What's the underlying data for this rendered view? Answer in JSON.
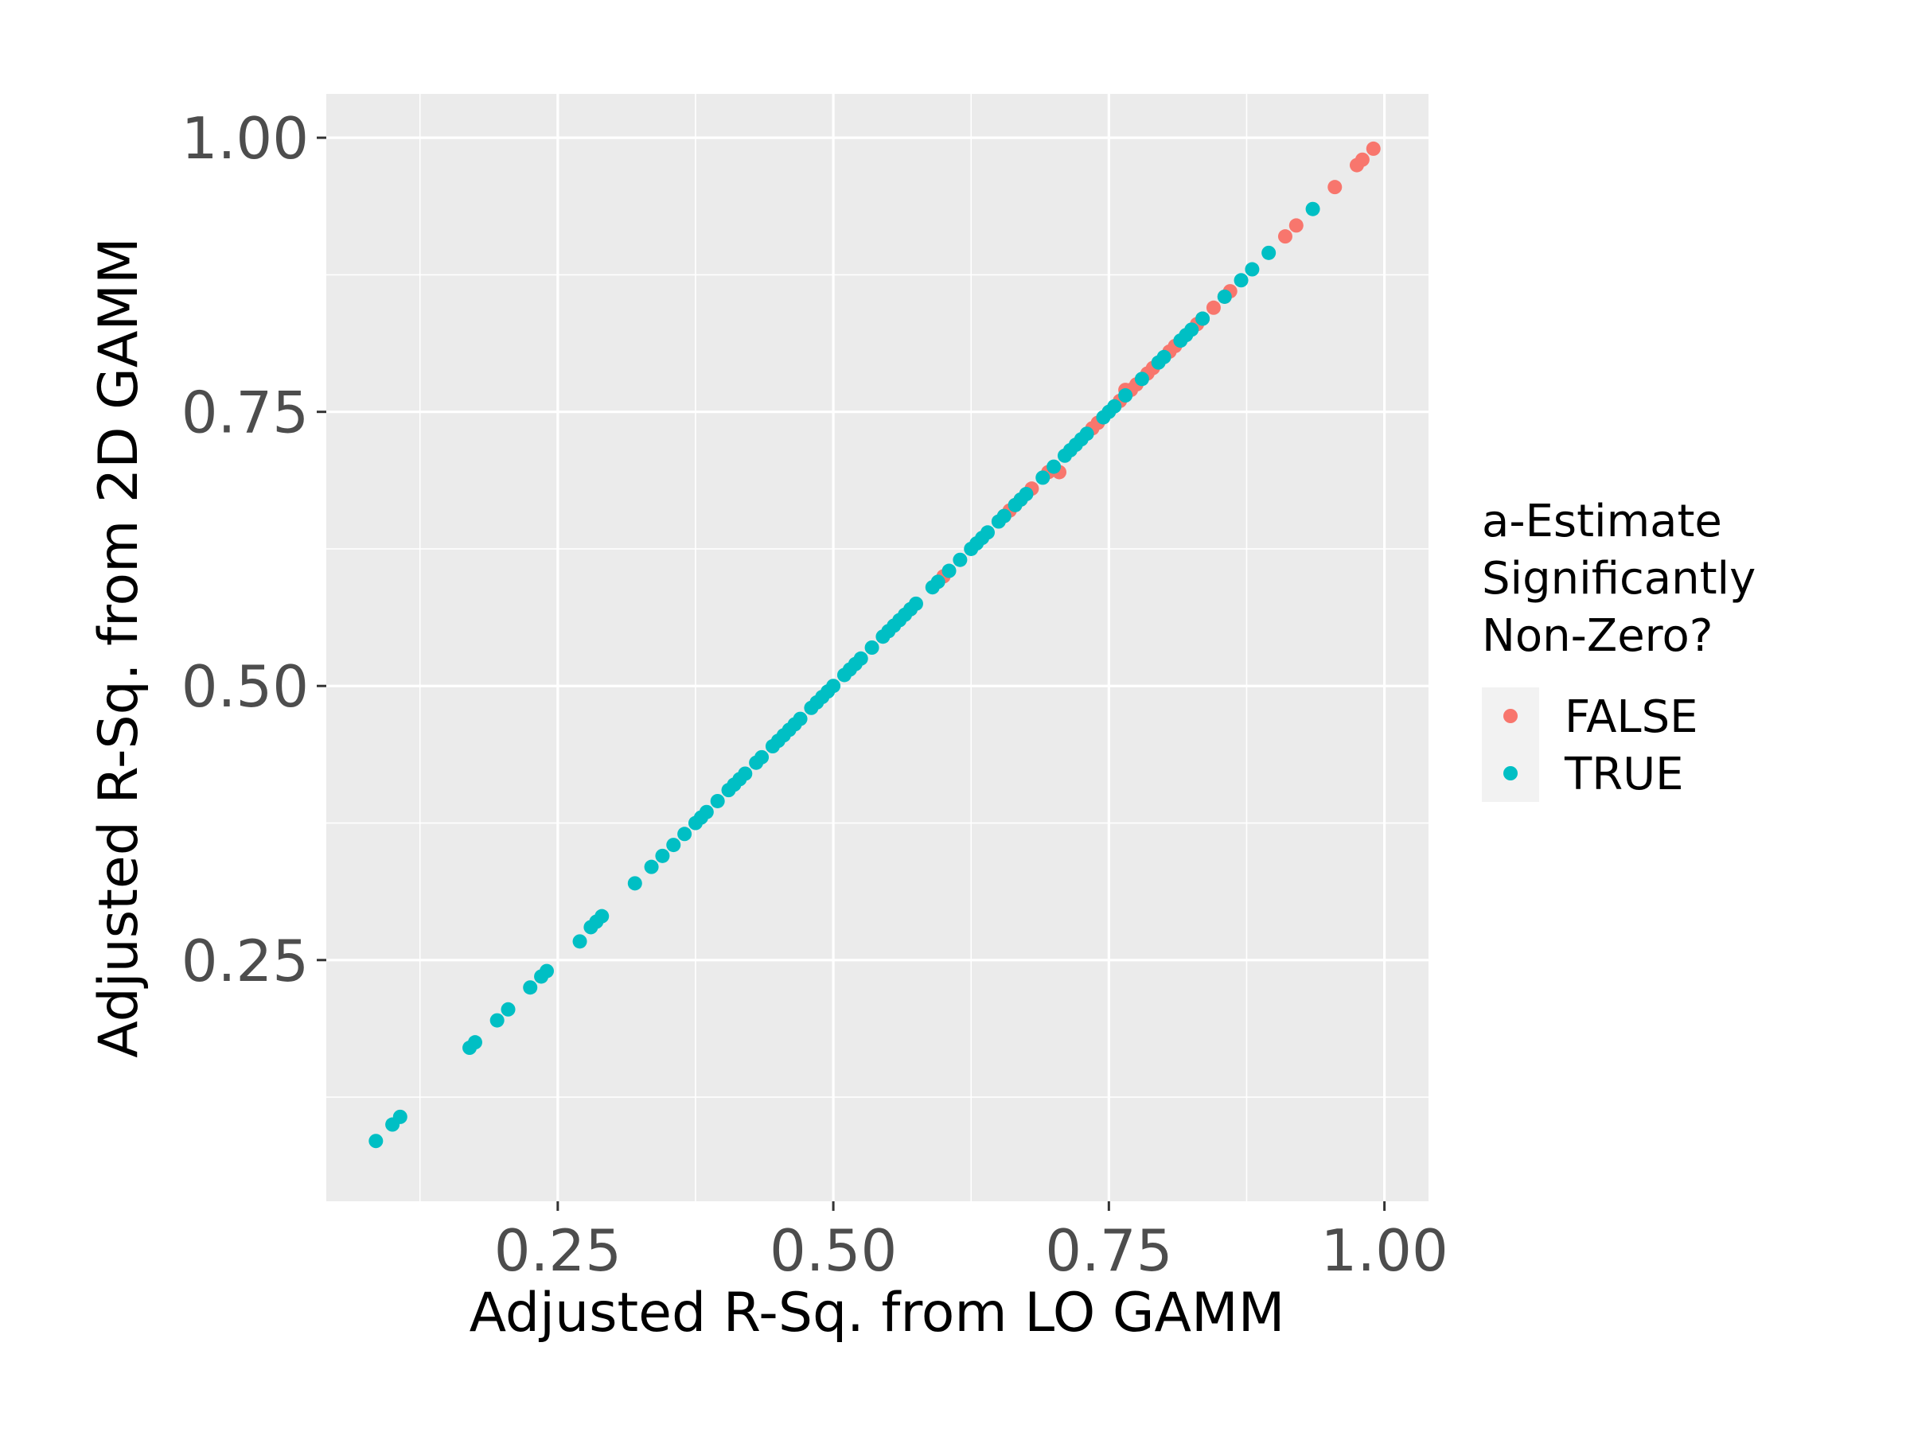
{
  "chart_data": {
    "type": "scatter",
    "xlabel": "Adjusted R-Sq. from LO GAMM",
    "ylabel": "Adjusted R-Sq. from 2D GAMM",
    "xlim": [
      0.04,
      1.04
    ],
    "ylim": [
      0.03,
      1.04
    ],
    "x_ticks": [
      0.25,
      0.5,
      0.75,
      1.0
    ],
    "x_tick_labels": [
      "0.25",
      "0.50",
      "0.75",
      "1.00"
    ],
    "y_ticks": [
      0.25,
      0.5,
      0.75,
      1.0
    ],
    "y_tick_labels": [
      "0.25",
      "0.50",
      "0.75",
      "1.00"
    ],
    "grid": true,
    "legend": {
      "title_lines": [
        "a-Estimate",
        "Significantly",
        "Non-Zero?"
      ],
      "placement": "right"
    },
    "series": [
      {
        "name": "FALSE",
        "color": "#F8766D",
        "x": [
          0.57,
          0.6,
          0.655,
          0.66,
          0.665,
          0.67,
          0.68,
          0.695,
          0.705,
          0.735,
          0.74,
          0.76,
          0.765,
          0.77,
          0.775,
          0.785,
          0.79,
          0.805,
          0.81,
          0.83,
          0.835,
          0.845,
          0.855,
          0.86,
          0.91,
          0.92,
          0.955,
          0.975,
          0.98,
          0.99
        ],
        "y": [
          0.57,
          0.6,
          0.655,
          0.66,
          0.665,
          0.67,
          0.68,
          0.695,
          0.695,
          0.735,
          0.74,
          0.76,
          0.77,
          0.77,
          0.775,
          0.785,
          0.79,
          0.805,
          0.81,
          0.83,
          0.835,
          0.845,
          0.855,
          0.86,
          0.91,
          0.92,
          0.955,
          0.975,
          0.98,
          0.99
        ]
      },
      {
        "name": "TRUE",
        "color": "#00BFC4",
        "x": [
          0.085,
          0.1,
          0.107,
          0.17,
          0.175,
          0.195,
          0.205,
          0.225,
          0.235,
          0.24,
          0.27,
          0.28,
          0.285,
          0.29,
          0.32,
          0.335,
          0.345,
          0.355,
          0.365,
          0.375,
          0.38,
          0.385,
          0.395,
          0.405,
          0.41,
          0.415,
          0.42,
          0.43,
          0.435,
          0.445,
          0.45,
          0.455,
          0.46,
          0.465,
          0.47,
          0.48,
          0.485,
          0.49,
          0.495,
          0.5,
          0.51,
          0.515,
          0.52,
          0.525,
          0.535,
          0.545,
          0.55,
          0.555,
          0.56,
          0.565,
          0.57,
          0.575,
          0.59,
          0.595,
          0.605,
          0.615,
          0.625,
          0.63,
          0.635,
          0.64,
          0.65,
          0.655,
          0.665,
          0.67,
          0.675,
          0.69,
          0.7,
          0.71,
          0.715,
          0.72,
          0.725,
          0.73,
          0.745,
          0.75,
          0.755,
          0.765,
          0.78,
          0.795,
          0.8,
          0.815,
          0.82,
          0.825,
          0.835,
          0.855,
          0.87,
          0.88,
          0.895,
          0.935
        ],
        "y": [
          0.085,
          0.1,
          0.107,
          0.17,
          0.175,
          0.195,
          0.205,
          0.225,
          0.235,
          0.24,
          0.267,
          0.28,
          0.285,
          0.29,
          0.32,
          0.335,
          0.345,
          0.355,
          0.365,
          0.375,
          0.38,
          0.385,
          0.395,
          0.405,
          0.41,
          0.415,
          0.42,
          0.43,
          0.435,
          0.445,
          0.45,
          0.455,
          0.46,
          0.465,
          0.47,
          0.48,
          0.485,
          0.49,
          0.495,
          0.5,
          0.51,
          0.515,
          0.52,
          0.525,
          0.535,
          0.545,
          0.55,
          0.555,
          0.56,
          0.565,
          0.57,
          0.575,
          0.59,
          0.595,
          0.605,
          0.615,
          0.625,
          0.63,
          0.635,
          0.64,
          0.65,
          0.655,
          0.665,
          0.67,
          0.675,
          0.69,
          0.7,
          0.71,
          0.715,
          0.72,
          0.725,
          0.73,
          0.745,
          0.75,
          0.755,
          0.765,
          0.78,
          0.795,
          0.8,
          0.815,
          0.82,
          0.825,
          0.835,
          0.855,
          0.87,
          0.88,
          0.895,
          0.935
        ]
      }
    ]
  }
}
